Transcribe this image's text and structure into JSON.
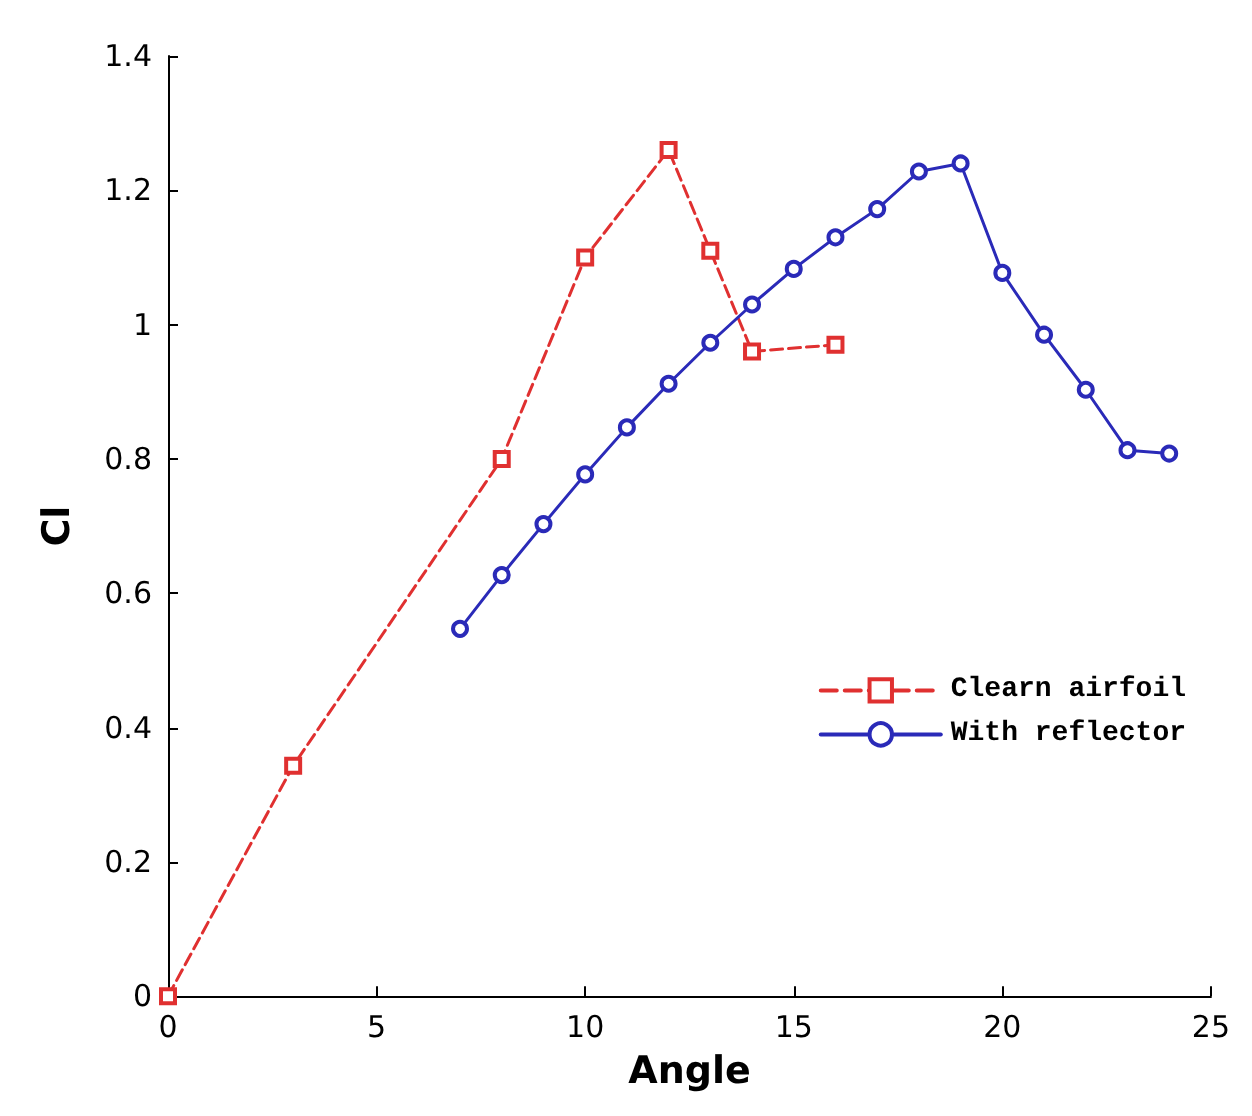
{
  "chart_data": {
    "type": "line",
    "xlabel": "Angle",
    "ylabel": "Cl",
    "xlim": [
      0,
      25
    ],
    "xticks": [
      0,
      5,
      10,
      15,
      20,
      25
    ],
    "ylim": [
      0,
      1.4
    ],
    "yticks": [
      0,
      0.2,
      0.4,
      0.6,
      0.8,
      1,
      1.2,
      1.4
    ],
    "grid": false,
    "legend": "right",
    "series": [
      {
        "name": "Clearn airfoil",
        "color": "#e03030",
        "marker": "square",
        "line_style": "dashed",
        "x": [
          0,
          3,
          8,
          10,
          12,
          13,
          14,
          16
        ],
        "values": [
          0,
          0.343,
          0.8,
          1.1,
          1.26,
          1.11,
          0.96,
          0.97
        ]
      },
      {
        "name": "With reflector",
        "color": "#2a2ab8",
        "marker": "circle",
        "line_style": "solid",
        "x": [
          7,
          8,
          9,
          10,
          11,
          12,
          13,
          14,
          15,
          16,
          17,
          18,
          19,
          20,
          21,
          22,
          23,
          24
        ],
        "values": [
          0.547,
          0.627,
          0.703,
          0.777,
          0.847,
          0.912,
          0.973,
          1.03,
          1.083,
          1.13,
          1.172,
          1.228,
          1.24,
          1.077,
          0.985,
          0.903,
          0.813,
          0.808
        ]
      }
    ]
  }
}
